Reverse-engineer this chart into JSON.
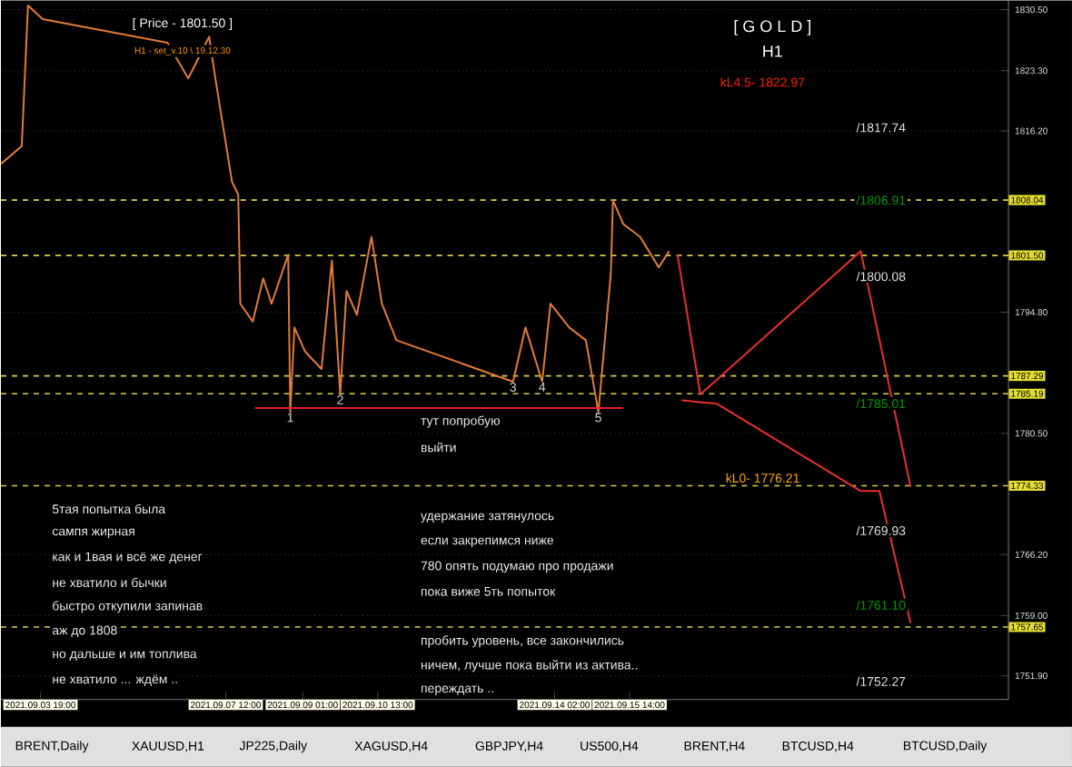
{
  "chart_data": {
    "type": "line",
    "title": "[ G O L D ]",
    "subtitle": "H1",
    "xlim": [
      "2021-09-03T00:00",
      "2021-09-23T04:00"
    ],
    "ylim": [
      1749.1,
      1831.6
    ],
    "grid": "y",
    "xticks": [
      {
        "value": "2021-09-03T19:00",
        "label": "2021.09.03 19:00"
      },
      {
        "value": "2021-09-07T12:00",
        "label": "2021.09.07 12:00"
      },
      {
        "value": "2021-09-09T01:00",
        "label": "2021.09.09 01:00"
      },
      {
        "value": "2021-09-10T13:00",
        "label": "2021.09.10 13:00"
      },
      {
        "value": "2021-09-14T02:00",
        "label": "2021.09.14 02:00"
      },
      {
        "value": "2021-09-15T14:00",
        "label": "2021.09.15 14:00"
      }
    ],
    "yticks": [
      {
        "value": 1751.9,
        "label": "1751.90"
      },
      {
        "value": 1759.0,
        "label": "1759.00"
      },
      {
        "value": 1766.2,
        "label": "1766.20"
      },
      {
        "value": 1780.5,
        "label": "1780.50"
      },
      {
        "value": 1794.8,
        "label": "1794.80"
      },
      {
        "value": 1816.2,
        "label": "1816.20"
      },
      {
        "value": 1823.3,
        "label": "1823.30"
      },
      {
        "value": 1830.5,
        "label": "1830.50"
      }
    ],
    "series": [
      {
        "color": "#e07b39",
        "x": [
          "2021-09-03T00:00",
          "2021-09-03T10:00",
          "2021-09-03T13:00",
          "2021-09-03T20:00",
          "2021-09-06T08:00",
          "2021-09-06T18:00",
          "2021-09-07T04:00",
          "2021-09-07T07:00",
          "2021-09-07T15:00",
          "2021-09-07T18:00",
          "2021-09-07T19:00",
          "2021-09-08T01:00",
          "2021-09-08T06:00",
          "2021-09-08T10:00",
          "2021-09-08T18:00",
          "2021-09-08T19:00",
          "2021-09-08T21:00",
          "2021-09-09T02:00",
          "2021-09-09T10:00",
          "2021-09-09T15:00",
          "2021-09-09T19:00",
          "2021-09-09T22:00",
          "2021-09-10T03:00",
          "2021-09-10T10:00",
          "2021-09-10T15:00",
          "2021-09-10T22:00",
          "2021-09-13T06:00",
          "2021-09-13T12:00",
          "2021-09-13T20:00",
          "2021-09-14T00:00",
          "2021-09-14T09:00",
          "2021-09-14T17:00",
          "2021-09-14T23:00",
          "2021-09-15T05:00",
          "2021-09-15T06:00",
          "2021-09-15T11:00",
          "2021-09-15T19:00",
          "2021-09-16T04:00",
          "2021-09-16T09:00"
        ],
        "values": [
          1812.3,
          1814.4,
          1831.0,
          1829.4,
          1826.6,
          1822.4,
          1827.3,
          1822.4,
          1810.2,
          1808.7,
          1795.8,
          1793.7,
          1798.8,
          1795.8,
          1801.6,
          1783.0,
          1793.0,
          1790.2,
          1788.1,
          1800.9,
          1785.1,
          1797.3,
          1794.5,
          1803.7,
          1795.8,
          1791.5,
          1786.6,
          1793.0,
          1786.6,
          1795.8,
          1793.0,
          1791.5,
          1783.0,
          1799.4,
          1808.0,
          1805.2,
          1803.7,
          1800.1,
          1802.0
        ]
      },
      {
        "color": "#e02020",
        "x": [
          "2021-09-08T02:00",
          "2021-09-15T11:00"
        ],
        "values": [
          1783.5,
          1783.5
        ]
      },
      {
        "color": "#e8302a",
        "x": [
          "2021-09-16T13:00",
          "2021-09-17T00:00",
          "2021-09-20T05:00",
          "2021-09-21T05:00"
        ],
        "values": [
          1801.6,
          1785.1,
          1802.0,
          1774.2
        ]
      },
      {
        "color": "#e8302a",
        "x": [
          "2021-09-16T15:00",
          "2021-09-17T08:00",
          "2021-09-20T05:00",
          "2021-09-20T14:00",
          "2021-09-21T05:00"
        ],
        "values": [
          1784.4,
          1784.0,
          1773.7,
          1773.7,
          1758.1
        ]
      }
    ],
    "ref_lines": [
      {
        "axis": "y",
        "value": 1808.04,
        "label": "1808.04",
        "color": "#d8cf4a",
        "line_style": "dashed"
      },
      {
        "axis": "y",
        "value": 1801.5,
        "label": "1801.50",
        "color": "#d8cf4a",
        "line_style": "dashed"
      },
      {
        "axis": "y",
        "value": 1787.29,
        "label": "1787.29",
        "color": "#d8cf4a",
        "line_style": "dashed"
      },
      {
        "axis": "y",
        "value": 1785.19,
        "label": "1785.19",
        "color": "#d8cf4a",
        "line_style": "dashed"
      },
      {
        "axis": "y",
        "value": 1774.33,
        "label": "1774.33",
        "color": "#d8cf4a",
        "line_style": "dashed"
      },
      {
        "axis": "y",
        "value": 1757.65,
        "label": "1757.65",
        "color": "#d8cf4a",
        "line_style": "dashed"
      }
    ],
    "annotations": [
      "[ Price - 1801.50 ]",
      "H1 - set_v.10 \\ 19.12.30",
      "тут попробую",
      "выйти",
      "5тая попытка была",
      "сампя жирная",
      "как и 1вая и всё же денег",
      "не хватило и бычки",
      "быстро откупили запинав",
      "аж до 1808",
      "но дальше и им топлива",
      "не хватило ... ждём ..",
      "удержание затянулось",
      "если закрепимся ниже",
      "780 опять подумаю про продажи",
      "пока виже 5ть попыток",
      "пробить уровень, все закончились",
      "ничем, лучше пока выйти из актива..",
      "переждать ..",
      "BRENT,Daily",
      "XAUUSD,H1",
      "JP225,Daily",
      "XAGUSD,H4",
      "GBPJPY,H4",
      "US500,H4",
      "BRENT,H4",
      "BTCUSD,H4",
      "BTCUSD,Daily",
      {
        "text": "1",
        "x": "2021-09-08T19:00",
        "y": 1783.0
      },
      {
        "text": "2",
        "x": "2021-09-09T19:00",
        "y": 1785.1
      },
      {
        "text": "3",
        "x": "2021-09-13T06:00",
        "y": 1786.6
      },
      {
        "text": "4",
        "x": "2021-09-13T20:00",
        "y": 1786.6
      },
      {
        "text": "5",
        "x": "2021-09-14T23:00",
        "y": 1783.0
      },
      "kL4.5- 1822.97",
      "/1817.74",
      "/1806.91",
      "/1800.08",
      "/1785.01",
      "kL0- 1776.21",
      "/1769.93",
      "/1761.10",
      "/1752.27"
    ]
  }
}
